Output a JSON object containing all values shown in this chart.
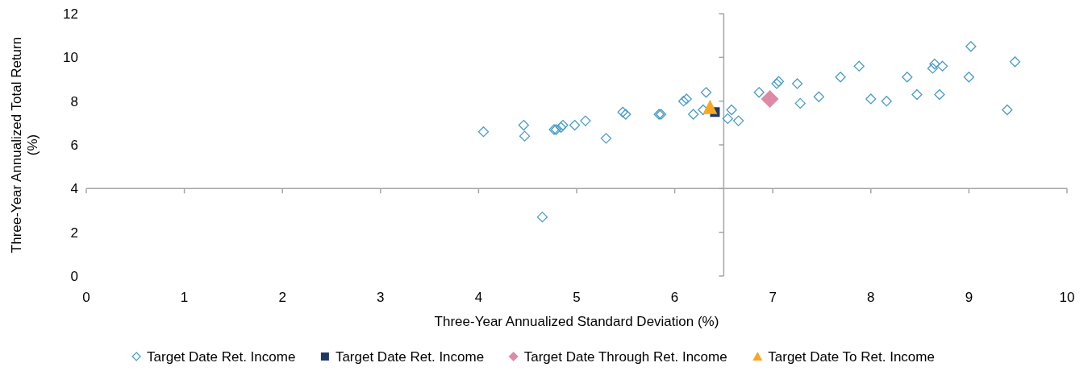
{
  "chart_data": {
    "type": "scatter",
    "xlabel": "Three-Year Annualized Standard Deviation (%)",
    "ylabel": "Three-Year Annualized Total Return (%)",
    "xlim": [
      0,
      10
    ],
    "ylim": [
      0,
      12
    ],
    "xticks": [
      0,
      1,
      2,
      3,
      4,
      5,
      6,
      7,
      8,
      9,
      10
    ],
    "yticks": [
      0,
      2,
      4,
      6,
      8,
      10,
      12
    ],
    "grid": false,
    "legend": "bottom",
    "ref_lines": [
      {
        "axis": "x",
        "value": 6.5,
        "color": "#a6a6a6"
      },
      {
        "axis": "y",
        "value": 4,
        "color": "#a6a6a6"
      }
    ],
    "series": [
      {
        "name": "Target Date Ret. Income",
        "color": "#4a9bcb",
        "marker": "diamond-open",
        "x": [
          4.05,
          4.46,
          4.47,
          4.77,
          4.79,
          4.84,
          4.86,
          4.98,
          5.09,
          5.3,
          5.47,
          5.5,
          5.84,
          5.86,
          6.09,
          6.12,
          6.19,
          6.32,
          6.29,
          4.65,
          6.58,
          6.54,
          6.65,
          6.86,
          7.04,
          7.06,
          7.25,
          7.28,
          7.47,
          7.69,
          7.88,
          8.0,
          8.16,
          8.37,
          8.47,
          8.63,
          8.65,
          8.73,
          8.7,
          9.0,
          9.02,
          9.47,
          9.39
        ],
        "values": [
          6.6,
          6.9,
          6.4,
          6.7,
          6.7,
          6.8,
          6.9,
          6.9,
          7.1,
          6.3,
          7.5,
          7.4,
          7.4,
          7.4,
          8.0,
          8.1,
          7.4,
          8.4,
          7.6,
          2.7,
          7.6,
          7.2,
          7.1,
          8.4,
          8.8,
          8.9,
          8.8,
          7.9,
          8.2,
          9.1,
          9.6,
          8.1,
          8.0,
          9.1,
          8.3,
          9.5,
          9.7,
          9.6,
          8.3,
          9.1,
          10.5,
          9.8,
          7.6
        ]
      },
      {
        "name": "Target Date Ret. Income",
        "color": "#1f3864",
        "marker": "square",
        "x": [
          6.41
        ],
        "values": [
          7.5
        ]
      },
      {
        "name": "Target Date Through Ret. Income",
        "color": "#dc8aa5",
        "marker": "diamond",
        "x": [
          6.97
        ],
        "values": [
          8.1
        ]
      },
      {
        "name": "Target Date To Ret. Income",
        "color": "#f7a823",
        "marker": "triangle",
        "x": [
          6.36
        ],
        "values": [
          7.7
        ]
      }
    ]
  }
}
